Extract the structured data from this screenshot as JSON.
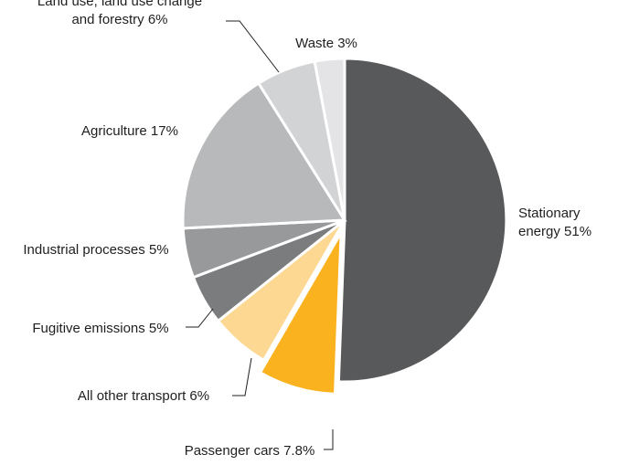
{
  "chart_data": {
    "type": "pie",
    "title": "",
    "slices": [
      {
        "name": "Stationary energy",
        "value": 51,
        "value_label": "51%",
        "color": "#58595b",
        "label_lines": [
          "Stationary",
          "energy 51%"
        ]
      },
      {
        "name": "Passenger cars",
        "value": 7.8,
        "value_label": "7.8%",
        "color": "#fbb21f",
        "exploded": true,
        "label_lines": [
          "Passenger cars 7.8%"
        ]
      },
      {
        "name": "All other transport",
        "value": 6,
        "value_label": "6%",
        "color": "#fcd893",
        "label_lines": [
          "All other transport 6%"
        ]
      },
      {
        "name": "Fugitive emissions",
        "value": 5,
        "value_label": "5%",
        "color": "#7b7c7e",
        "label_lines": [
          "Fugitive emissions 5%"
        ]
      },
      {
        "name": "Industrial processes",
        "value": 5,
        "value_label": "5%",
        "color": "#98999b",
        "label_lines": [
          "Industrial processes 5%"
        ]
      },
      {
        "name": "Agriculture",
        "value": 17,
        "value_label": "17%",
        "color": "#b8b9bb",
        "label_lines": [
          "Agriculture 17%"
        ]
      },
      {
        "name": "Land use, land use change and forestry",
        "value": 6,
        "value_label": "6%",
        "color": "#d2d3d4",
        "label_lines": [
          "Land use, land use change",
          "and forestry 6%"
        ]
      },
      {
        "name": "Waste",
        "value": 3,
        "value_label": "3%",
        "color": "#e4e4e6",
        "label_lines": [
          "Waste 3%"
        ]
      }
    ]
  }
}
